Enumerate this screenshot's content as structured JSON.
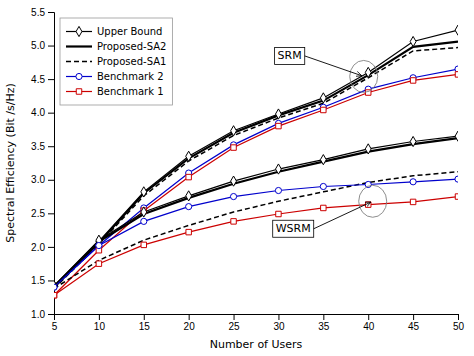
{
  "chart_data": {
    "type": "line",
    "x_label": "Number of Users",
    "y_label": "Spectral Efficiency (Bit /s/Hz)",
    "x": [
      5,
      10,
      15,
      20,
      25,
      30,
      35,
      40,
      45,
      50
    ],
    "series": [
      {
        "name": "Upper Bound",
        "color": "#000000",
        "marker": "diamond",
        "line_style": "solid",
        "values": [
          1.42,
          2.08,
          2.82,
          3.35,
          3.73,
          3.98,
          4.22,
          4.6,
          5.06,
          5.23
        ]
      },
      {
        "name": "Proposed-SA2",
        "color": "#000000",
        "line_style": "solid",
        "values": [
          1.4,
          2.06,
          2.8,
          3.32,
          3.7,
          3.96,
          4.18,
          4.56,
          4.98,
          5.06
        ]
      },
      {
        "name": "Proposed-SA1",
        "color": "#000000",
        "line_style": "dashed",
        "values": [
          1.38,
          2.04,
          2.76,
          3.28,
          3.66,
          3.92,
          4.14,
          4.52,
          4.92,
          4.97
        ]
      },
      {
        "name": "Benchmark 2",
        "color": "#0000cc",
        "marker": "circle",
        "line_style": "solid",
        "values": [
          1.4,
          2.02,
          2.58,
          3.1,
          3.52,
          3.84,
          4.08,
          4.35,
          4.52,
          4.65
        ]
      },
      {
        "name": "Benchmark 1",
        "color": "#cc0000",
        "marker": "square",
        "line_style": "solid",
        "values": [
          1.28,
          1.95,
          2.54,
          3.04,
          3.48,
          3.8,
          4.04,
          4.3,
          4.48,
          4.57
        ]
      },
      {
        "color": "#000000",
        "marker": "diamond",
        "line_style": "solid",
        "values": [
          1.42,
          2.1,
          2.52,
          2.76,
          2.98,
          3.16,
          3.3,
          3.46,
          3.57,
          3.65
        ]
      },
      {
        "color": "#000000",
        "line_style": "solid",
        "values": [
          1.4,
          2.08,
          2.49,
          2.73,
          2.94,
          3.12,
          3.27,
          3.42,
          3.53,
          3.62
        ]
      },
      {
        "color": "#000000",
        "line_style": "dashed",
        "values": [
          1.38,
          1.8,
          2.1,
          2.32,
          2.52,
          2.68,
          2.82,
          2.96,
          3.06,
          3.12
        ]
      },
      {
        "color": "#0000cc",
        "marker": "circle",
        "line_style": "solid",
        "values": [
          1.4,
          2.02,
          2.38,
          2.6,
          2.75,
          2.84,
          2.9,
          2.93,
          2.97,
          3.01
        ]
      },
      {
        "color": "#cc0000",
        "marker": "square",
        "line_style": "solid",
        "values": [
          1.28,
          1.75,
          2.03,
          2.22,
          2.38,
          2.49,
          2.58,
          2.63,
          2.67,
          2.75
        ]
      }
    ],
    "annotations": [
      {
        "text": "SRM",
        "x": 39.5,
        "y": 4.54
      },
      {
        "text": "WSRM",
        "x": 40.5,
        "y": 2.68
      }
    ],
    "xlim": [
      5,
      50
    ],
    "ylim": [
      1.0,
      5.5
    ],
    "xticks": [
      5,
      10,
      15,
      20,
      25,
      30,
      35,
      40,
      45,
      50
    ],
    "yticks": [
      {
        "value": 1.0,
        "label": "1.0"
      },
      {
        "value": 1.5,
        "label": "1.5"
      },
      {
        "value": 2.0,
        "label": "2.0"
      },
      {
        "value": 2.5,
        "label": "2.5"
      },
      {
        "value": 3.0,
        "label": "3.0"
      },
      {
        "value": 3.5,
        "label": "3.5"
      },
      {
        "value": 4.0,
        "label": "4.0"
      },
      {
        "value": 4.5,
        "label": "4.5"
      },
      {
        "value": 5.0,
        "label": "5.0"
      },
      {
        "value": 5.5,
        "label": "5.5"
      }
    ],
    "grid": false,
    "legend": "upper-left"
  }
}
